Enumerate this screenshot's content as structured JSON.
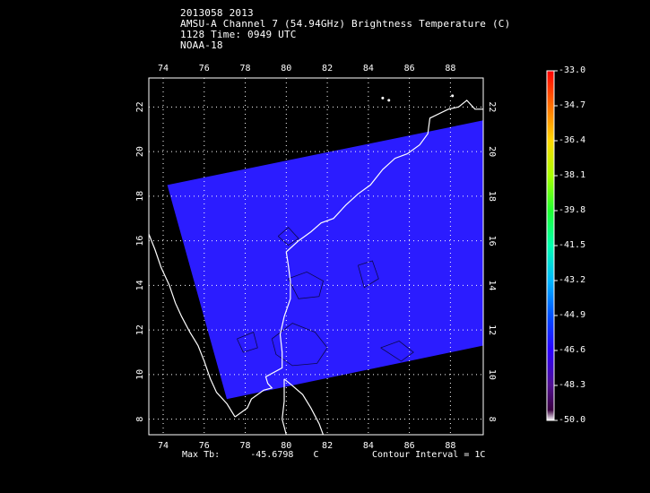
{
  "header": {
    "line1": "2013058 2013",
    "line2": "AMSU-A Channel 7 (54.94GHz) Brightness Temperature (C)",
    "line3": "1128 Time: 0949 UTC",
    "line4": "NOAA-18"
  },
  "map": {
    "lon_range": [
      73.3,
      89.6
    ],
    "lat_range": [
      7.3,
      23.3
    ],
    "lon_ticks": [
      "74",
      "76",
      "78",
      "80",
      "82",
      "84",
      "86",
      "88"
    ],
    "lat_ticks": [
      "8",
      "10",
      "12",
      "14",
      "16",
      "18",
      "20",
      "22"
    ],
    "swath_color": "#2b1cff",
    "swath_corners_lonlat": [
      [
        74.2,
        18.5
      ],
      [
        89.6,
        21.4
      ],
      [
        89.6,
        11.3
      ],
      [
        77.1,
        8.9
      ]
    ],
    "coast_color": "#ffffff"
  },
  "footer": {
    "max_tb_label": "Max Tb:",
    "max_tb_value": "-45.6798",
    "max_tb_unit": "C",
    "contour_interval": "Contour Interval = 1C"
  },
  "colorbar": {
    "ticks": [
      "-33.0",
      "-34.7",
      "-36.4",
      "-38.1",
      "-39.8",
      "-41.5",
      "-43.2",
      "-44.9",
      "-46.6",
      "-48.3",
      "-50.0"
    ],
    "colors": [
      "#ff0000",
      "#ff8000",
      "#ffe000",
      "#a0ff00",
      "#00ff40",
      "#00ffd0",
      "#00a0ff",
      "#0030ff",
      "#3000ff",
      "#5a1080",
      "#ffffff"
    ]
  }
}
